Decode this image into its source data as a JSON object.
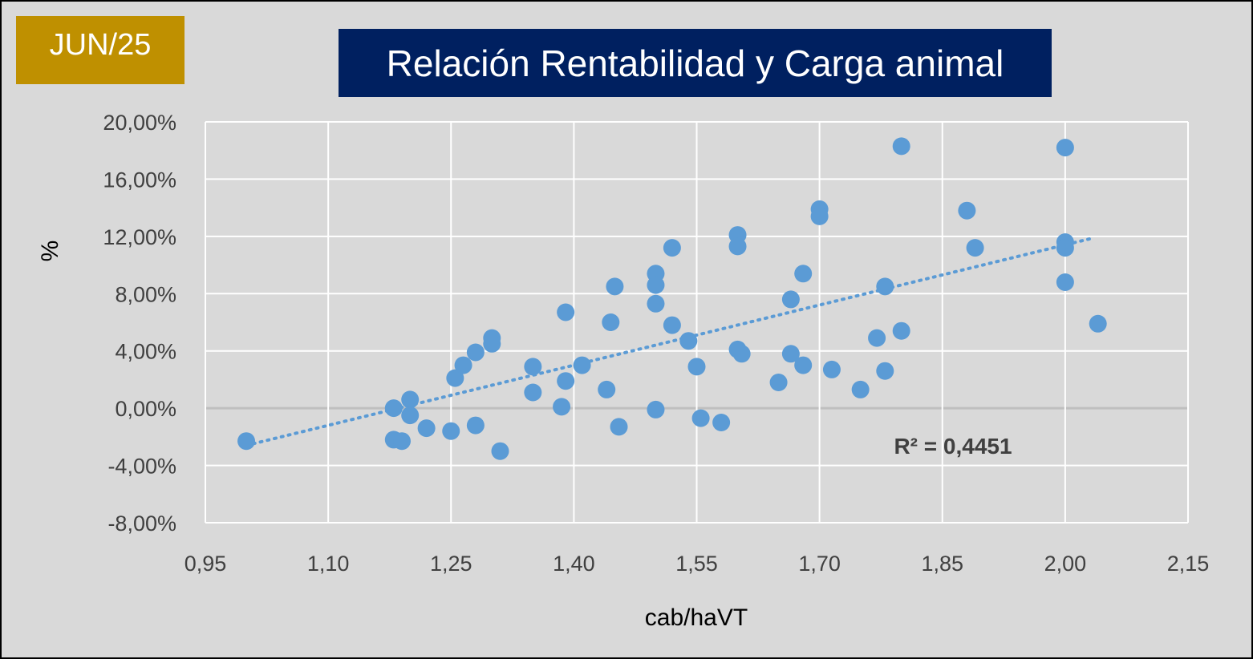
{
  "badge": {
    "label": "JUN/25"
  },
  "colors": {
    "background": "#d9d9d9",
    "badge": "#bf9000",
    "title_bg": "#002060",
    "point": "#5b9bd5",
    "trendline": "#5b9bd5",
    "grid": "#ffffff"
  },
  "chart_data": {
    "type": "scatter",
    "title": "Relación Rentabilidad y Carga animal",
    "xlabel": "cab/haVT",
    "ylabel": "%",
    "xlim": [
      0.95,
      2.15
    ],
    "ylim": [
      -8,
      20
    ],
    "x_ticks": [
      0.95,
      1.1,
      1.25,
      1.4,
      1.55,
      1.7,
      1.85,
      2.0,
      2.15
    ],
    "x_tick_labels": [
      "0,95",
      "1,10",
      "1,25",
      "1,40",
      "1,55",
      "1,70",
      "1,85",
      "2,00",
      "2,15"
    ],
    "y_ticks": [
      20,
      16,
      12,
      8,
      4,
      0,
      -4,
      -8
    ],
    "y_tick_labels": [
      "20,00%",
      "16,00%",
      "12,00%",
      "8,00%",
      "4,00%",
      "0,00%",
      "-4,00%",
      "-8,00%"
    ],
    "grid": true,
    "annotation": "R² = 0,4451",
    "trendline": {
      "type": "linear",
      "x": [
        1.0,
        2.035
      ],
      "y": [
        -2.6,
        11.9
      ]
    },
    "points": [
      [
        1.0,
        -2.3
      ],
      [
        1.18,
        -2.2
      ],
      [
        1.19,
        -2.3
      ],
      [
        1.18,
        0.0
      ],
      [
        1.2,
        0.6
      ],
      [
        1.2,
        -0.5
      ],
      [
        1.22,
        -1.4
      ],
      [
        1.25,
        -1.6
      ],
      [
        1.255,
        2.1
      ],
      [
        1.265,
        3.0
      ],
      [
        1.28,
        3.9
      ],
      [
        1.28,
        -1.2
      ],
      [
        1.3,
        4.9
      ],
      [
        1.3,
        4.5
      ],
      [
        1.31,
        -3.0
      ],
      [
        1.35,
        2.9
      ],
      [
        1.35,
        1.1
      ],
      [
        1.385,
        0.1
      ],
      [
        1.39,
        6.7
      ],
      [
        1.39,
        1.9
      ],
      [
        1.41,
        3.0
      ],
      [
        1.44,
        1.3
      ],
      [
        1.445,
        6.0
      ],
      [
        1.45,
        8.5
      ],
      [
        1.455,
        -1.3
      ],
      [
        1.5,
        9.4
      ],
      [
        1.5,
        8.6
      ],
      [
        1.5,
        7.3
      ],
      [
        1.5,
        -0.1
      ],
      [
        1.52,
        11.2
      ],
      [
        1.52,
        5.8
      ],
      [
        1.54,
        4.7
      ],
      [
        1.55,
        2.9
      ],
      [
        1.555,
        -0.7
      ],
      [
        1.58,
        -1.0
      ],
      [
        1.6,
        12.1
      ],
      [
        1.6,
        11.3
      ],
      [
        1.6,
        4.1
      ],
      [
        1.605,
        3.8
      ],
      [
        1.65,
        1.8
      ],
      [
        1.665,
        7.6
      ],
      [
        1.665,
        3.8
      ],
      [
        1.68,
        9.4
      ],
      [
        1.68,
        3.0
      ],
      [
        1.7,
        13.9
      ],
      [
        1.7,
        13.4
      ],
      [
        1.715,
        2.7
      ],
      [
        1.75,
        1.3
      ],
      [
        1.77,
        4.9
      ],
      [
        1.78,
        8.5
      ],
      [
        1.78,
        2.6
      ],
      [
        1.8,
        5.4
      ],
      [
        1.8,
        18.3
      ],
      [
        1.88,
        13.8
      ],
      [
        1.89,
        11.2
      ],
      [
        2.0,
        18.2
      ],
      [
        2.0,
        11.6
      ],
      [
        2.0,
        11.2
      ],
      [
        2.0,
        8.8
      ],
      [
        2.04,
        5.9
      ]
    ]
  }
}
